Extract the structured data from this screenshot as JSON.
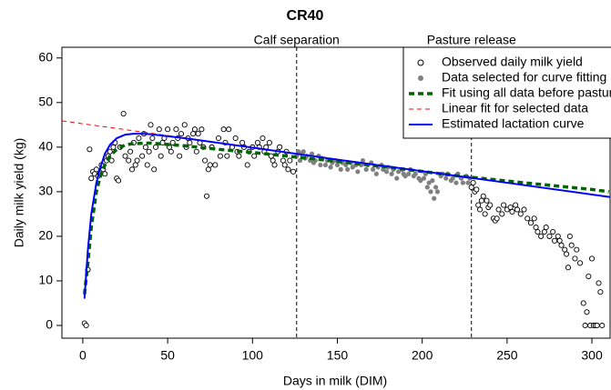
{
  "chart_data": {
    "type": "scatter",
    "title": "CR40",
    "x_label": "Days in milk (DIM)",
    "y_label": "Daily milk yield (kg)",
    "xlim": [
      -12.3,
      310.7
    ],
    "ylim": [
      -2.86,
      62.4
    ],
    "xticks": [
      0,
      50,
      100,
      150,
      200,
      250,
      300
    ],
    "yticks": [
      0,
      10,
      20,
      30,
      40,
      50,
      60
    ],
    "legend": "top-right",
    "vlines": [
      {
        "x": 126,
        "label": "Calf separation"
      },
      {
        "x": 229,
        "label": "Pasture release"
      }
    ],
    "series": [
      {
        "name": "Observed daily milk yield",
        "kind": "scatter",
        "marker": "open",
        "color": "#000000",
        "x": [
          1,
          2,
          3,
          4,
          5,
          6,
          7,
          8,
          9,
          10,
          11,
          12,
          13,
          14,
          15,
          16,
          17,
          18,
          19,
          20,
          21,
          22,
          24,
          25,
          27,
          28,
          29,
          30,
          31,
          32,
          33,
          35,
          36,
          37,
          38,
          39,
          40,
          41,
          42,
          43,
          45,
          46,
          47,
          48,
          50,
          51,
          52,
          53,
          55,
          56,
          57,
          58,
          60,
          61,
          62,
          63,
          65,
          66,
          67,
          68,
          69,
          70,
          71,
          72,
          73,
          74,
          75,
          76,
          78,
          80,
          81,
          83,
          84,
          85,
          86,
          88,
          90,
          91,
          92,
          94,
          95,
          97,
          98,
          100,
          101,
          103,
          104,
          106,
          107,
          108,
          110,
          111,
          112,
          113,
          115,
          116,
          118,
          119,
          120,
          121,
          122,
          124,
          229,
          230,
          231,
          232,
          233,
          234,
          235,
          236,
          237,
          238,
          239,
          240,
          242,
          243,
          244,
          245,
          247,
          248,
          250,
          252,
          253,
          255,
          256,
          258,
          260,
          262,
          264,
          266,
          267,
          268,
          270,
          272,
          273,
          275,
          277,
          278,
          280,
          281,
          282,
          284,
          285,
          286,
          287,
          288,
          290,
          291,
          293,
          295,
          296,
          297,
          298,
          299,
          300,
          301,
          302,
          303,
          304,
          305,
          306
        ],
        "values": [
          0.5,
          0,
          12.5,
          39.5,
          33,
          34.5,
          34,
          35,
          33.5,
          34,
          36,
          35,
          34,
          37,
          38,
          39,
          37,
          40,
          41,
          33,
          32.5,
          40,
          47.5,
          38,
          37,
          39,
          35,
          41,
          36,
          37,
          42,
          38,
          43,
          40,
          36,
          39,
          45,
          42,
          35,
          40,
          44,
          38,
          41,
          42,
          44,
          40,
          39,
          41,
          44,
          42,
          38,
          43,
          45,
          40,
          42,
          41,
          43,
          44,
          39,
          43,
          41,
          44,
          40,
          37,
          29,
          35,
          36,
          40,
          36,
          42,
          38,
          44,
          41,
          38,
          44,
          40,
          42,
          39,
          38,
          41,
          40,
          36,
          39,
          40,
          38,
          41,
          40,
          42,
          39,
          40,
          41,
          38,
          37,
          36,
          39,
          40,
          37,
          36,
          39,
          35,
          37,
          34.5,
          31,
          32,
          30,
          30.5,
          27,
          26,
          28,
          29,
          25,
          28,
          26.5,
          27,
          24,
          23.5,
          24,
          26,
          25,
          27,
          26,
          26.5,
          25.5,
          27,
          26,
          25,
          26,
          24,
          23,
          24,
          22,
          21,
          20,
          21,
          22,
          20,
          21,
          19,
          20,
          19,
          18,
          17,
          16,
          13,
          20,
          18,
          15,
          17,
          14,
          5,
          0,
          3,
          11,
          0,
          15,
          0,
          0,
          0,
          9.5,
          7.5,
          0
        ]
      },
      {
        "name": "Data selected for curve fitting",
        "kind": "scatter",
        "marker": "filled",
        "color": "#808080",
        "x": [
          126,
          127,
          128,
          129,
          130,
          131,
          132,
          134,
          135,
          136,
          137,
          139,
          140,
          141,
          143,
          144,
          146,
          147,
          149,
          150,
          152,
          153,
          155,
          156,
          158,
          159,
          161,
          162,
          164,
          165,
          167,
          168,
          170,
          171,
          173,
          174,
          176,
          177,
          179,
          180,
          182,
          183,
          185,
          186,
          188,
          189,
          190,
          192,
          193,
          195,
          196,
          198,
          199,
          201,
          202,
          203,
          204,
          205,
          206,
          207,
          208,
          209,
          211,
          212,
          214,
          215,
          217,
          218,
          220,
          221,
          223,
          224,
          226,
          227,
          228
        ],
        "values": [
          38,
          39,
          37,
          38.5,
          39,
          37.5,
          38,
          37,
          38.5,
          36.5,
          37,
          38,
          36,
          37.5,
          36,
          37,
          35.5,
          36.5,
          37,
          36,
          35,
          36.5,
          36,
          35,
          36.5,
          35.5,
          36,
          34.5,
          36,
          37,
          35,
          36,
          36.5,
          35,
          34,
          35.5,
          36,
          35,
          34.5,
          35.5,
          34,
          35,
          33,
          34.5,
          35,
          34,
          33.5,
          34,
          35,
          33.5,
          34,
          33,
          32.5,
          33,
          34,
          31,
          32,
          30,
          32.5,
          28.5,
          31,
          30,
          33.5,
          34,
          33,
          34,
          32.5,
          33,
          32,
          34,
          33,
          32,
          33.5,
          32,
          33
        ]
      },
      {
        "name": "Fit using all data before pasture",
        "kind": "line",
        "dash": "6,4",
        "width": 3.5,
        "color": "#006400",
        "x": [
          1,
          3,
          5,
          8,
          10,
          13,
          16,
          20,
          25,
          30,
          40,
          60,
          80,
          100,
          120,
          150,
          180,
          220,
          260,
          300,
          310
        ],
        "values": [
          7,
          14,
          22,
          30,
          33,
          36,
          38,
          39.5,
          40.5,
          40.8,
          40.9,
          40.3,
          39.5,
          38.8,
          38,
          36.8,
          35.5,
          33.6,
          32,
          30.5,
          30
        ]
      },
      {
        "name": "Linear fit for selected data",
        "kind": "line",
        "dash": "5,4",
        "width": 1,
        "color": "#ff0000",
        "x": [
          -12.3,
          310.7
        ],
        "values": [
          45.9,
          28.8
        ]
      },
      {
        "name": "Estimated lactation curve",
        "kind": "line",
        "dash": "",
        "width": 2,
        "color": "#0000ff",
        "x": [
          1,
          3,
          5,
          8,
          10,
          13,
          16,
          20,
          25,
          30,
          35,
          40,
          60,
          100,
          150,
          200,
          250,
          310.7
        ],
        "values": [
          6,
          17,
          25,
          32,
          35,
          38.5,
          40.5,
          42,
          42.8,
          43,
          43,
          42.9,
          42,
          39.9,
          37.2,
          34.6,
          32,
          28.8
        ]
      }
    ]
  }
}
